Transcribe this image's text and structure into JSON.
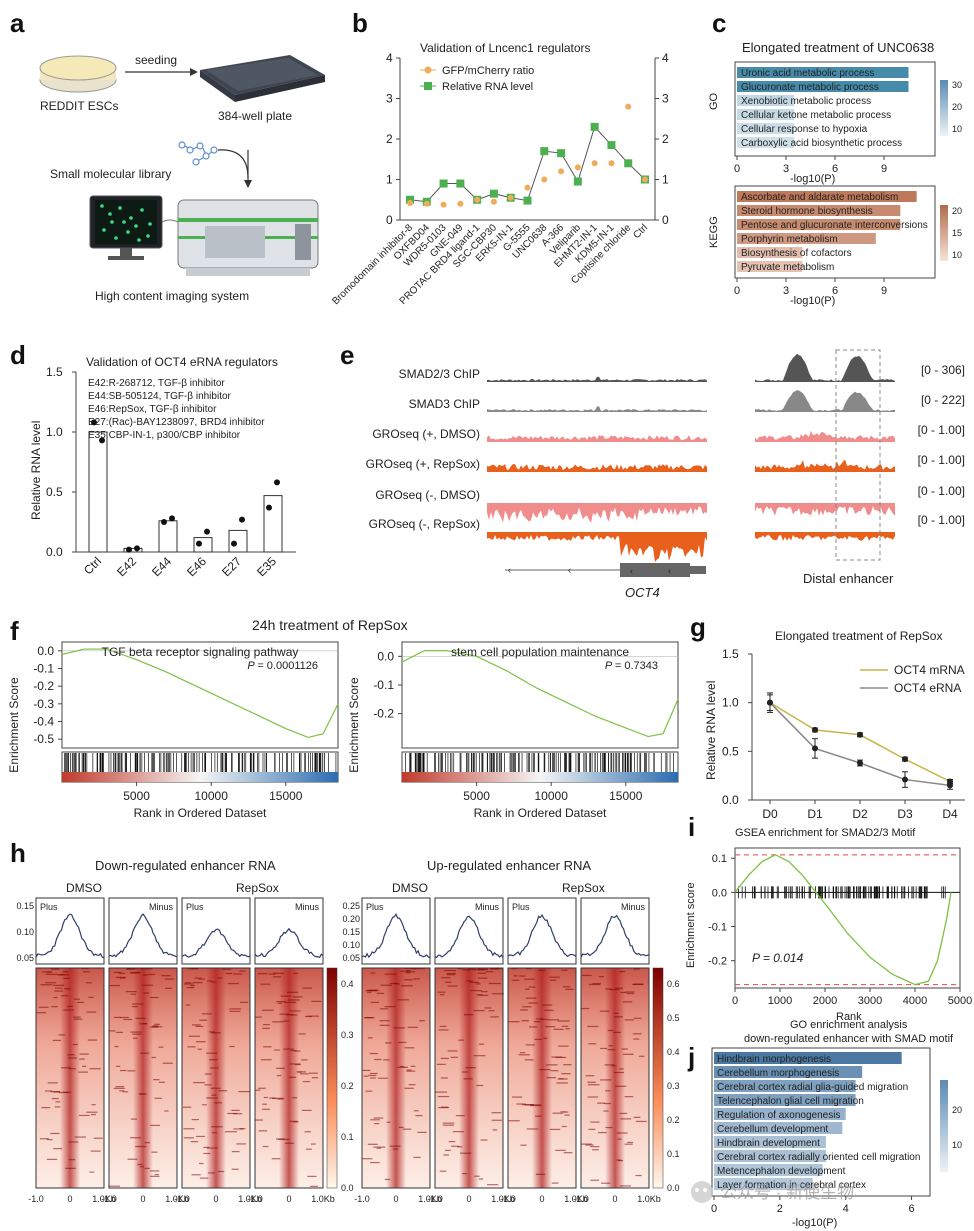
{
  "panel_letters": {
    "a": "a",
    "b": "b",
    "c": "c",
    "d": "d",
    "e": "e",
    "f": "f",
    "g": "g",
    "h": "h",
    "i": "i",
    "j": "j"
  },
  "panel_a": {
    "cells": "REDDIT ESCs",
    "seeding": "seeding",
    "plate": "384-well plate",
    "library": "Small molecular library",
    "system": "High content imaging system"
  },
  "panel_b": {
    "chart_data": {
      "type": "line",
      "title": "Validation of Lncenc1 regulators",
      "ylim": [
        0,
        4
      ],
      "yticks": [
        "0",
        "1",
        "2",
        "3",
        "4"
      ],
      "categories": [
        "Bromodomain inhibitor-8",
        "OXFBD04",
        "WDR5-0103",
        "GNE-049",
        "PROTAC BRD4 ligand-1",
        "SGC-CBP30",
        "ERK5-IN-1",
        "G-5555",
        "UNC0638",
        "A-366",
        "Veliparib",
        "EHMT2-IN-1",
        "KDM5-IN-1",
        "Coptisine chloride",
        "Ctrl"
      ],
      "category_colors": [
        "#2a9d6a",
        "#2a9d6a",
        "#222222",
        "#222222",
        "#2a9d6a",
        "#2a9d6a",
        "#2a9d6a",
        "#2a9d6a",
        "#2a9d6a",
        "#222222",
        "#222222",
        "#2a9d6a",
        "#2a9d6a",
        "#2a9d6a",
        "#222222"
      ],
      "series": [
        {
          "name": "GFP/mCherry ratio",
          "color": "#f0ac5a",
          "values": [
            0.42,
            0.4,
            0.38,
            0.4,
            0.5,
            0.45,
            0.55,
            0.8,
            1.0,
            1.2,
            1.3,
            1.4,
            1.4,
            2.8,
            1.0
          ]
        },
        {
          "name": "Relative RNA level",
          "color": "#4caf50",
          "values": [
            0.5,
            0.45,
            0.9,
            0.9,
            0.5,
            0.65,
            0.55,
            0.48,
            1.7,
            1.65,
            0.95,
            2.3,
            1.85,
            1.4,
            1.0
          ]
        }
      ]
    }
  },
  "panel_c": {
    "title": "Elongated treatment of UNC0638",
    "go": {
      "label": "GO",
      "chart_data": {
        "type": "bar",
        "categories": [
          "Uronic acid metabolic process",
          "Glucuronate metabolic process",
          "Xenobiotic metabolic process",
          "Cellular ketone metabolic process",
          "Cellular response to hypoxia",
          "Carboxylic acid biosynthetic process"
        ],
        "values": [
          10.5,
          10.5,
          3.5,
          3.5,
          3.5,
          3.5
        ],
        "color_values": [
          32,
          32,
          8,
          7,
          6,
          5
        ],
        "xticks": [
          "0",
          "3",
          "6",
          "9"
        ],
        "xlim": [
          0,
          12
        ],
        "xlabel": "-log10(P)",
        "colorbar_ticks": [
          "30",
          "20",
          "10"
        ]
      }
    },
    "kegg": {
      "label": "KEGG",
      "chart_data": {
        "type": "bar",
        "categories": [
          "Ascorbate and aldarate metabolism",
          "Steroid hormone biosynthesis",
          "Pentose and glucuronate interconversions",
          "Porphyrin metabolism",
          "Biosynthesis of cofactors",
          "Pyruvate metabolism"
        ],
        "values": [
          11.0,
          10.0,
          10.0,
          8.5,
          4.0,
          4.0
        ],
        "color_values": [
          22,
          18,
          18,
          15,
          7,
          6
        ],
        "xticks": [
          "0",
          "3",
          "6",
          "9"
        ],
        "xlim": [
          0,
          12
        ],
        "xlabel": "-log10(P)",
        "colorbar_ticks": [
          "20",
          "15",
          "10"
        ]
      }
    }
  },
  "panel_d": {
    "chart_data": {
      "type": "bar",
      "title": "Validation of OCT4 eRNA regulators",
      "ylabel": "Relative RNA level",
      "ylim": [
        0,
        1.5
      ],
      "yticks": [
        "0.0",
        "0.5",
        "1.0",
        "1.5"
      ],
      "categories": [
        "Ctrl",
        "E42",
        "E44",
        "E46",
        "E27",
        "E35"
      ],
      "values": [
        1.0,
        0.03,
        0.26,
        0.12,
        0.18,
        0.47
      ],
      "points": [
        [
          1.08,
          0.93
        ],
        [
          0.02,
          0.03
        ],
        [
          0.25,
          0.28
        ],
        [
          0.07,
          0.17
        ],
        [
          0.07,
          0.27
        ],
        [
          0.37,
          0.58
        ]
      ],
      "legend": [
        "E42:R-268712, TGF-β inhibitor",
        "E44:SB-505124, TGF-β inhibitor",
        "E46:RepSox, TGF-β inhibitor",
        "E27:(Rac)-BAY1238097, BRD4 inhibitor",
        "E35:CBP-IN-1, p300/CBP inhibitor"
      ]
    }
  },
  "panel_e": {
    "tracks": [
      {
        "name": "SMAD2/3 ChIP",
        "range": "[0 - 306]",
        "color": "#555555"
      },
      {
        "name": "SMAD3 ChIP",
        "range": "[0 - 222]",
        "color": "#888888"
      },
      {
        "name": "GROseq (+, DMSO)",
        "range": "[0 - 1.00]",
        "color": "#f08c8c"
      },
      {
        "name": "GROseq (+, RepSox)",
        "range": "[0 - 1.00]",
        "color": "#e8601c"
      },
      {
        "name": "GROseq (-, DMSO)",
        "range": "[0 - 1.00]",
        "color": "#f08c8c"
      },
      {
        "name": "GROseq (-, RepSox)",
        "range": "[0 - 1.00]",
        "color": "#e8601c"
      }
    ],
    "gene": "OCT4",
    "enhancer_label": "Distal enhancer"
  },
  "panel_f": {
    "title": "24h treatment of RepSox",
    "left": {
      "chart_data": {
        "type": "line",
        "name": "TGF beta receptor signaling pathway",
        "pvalue": "= 0.0001126",
        "ylabel": "Enrichment Score",
        "ylim": [
          -0.55,
          0.05
        ],
        "yticks": [
          "0.0",
          "-0.1",
          "-0.2",
          "-0.3",
          "-0.4",
          "-0.5"
        ],
        "xticks": [
          "5000",
          "10000",
          "15000"
        ],
        "xlabel": "Rank in Ordered Dataset",
        "x": [
          0,
          1500,
          3000,
          5000,
          7000,
          9000,
          11000,
          13000,
          15000,
          16500,
          17500,
          18500
        ],
        "y": [
          -0.02,
          0.01,
          0.01,
          -0.05,
          -0.12,
          -0.2,
          -0.28,
          -0.36,
          -0.44,
          -0.49,
          -0.47,
          -0.3
        ]
      }
    },
    "right": {
      "chart_data": {
        "type": "line",
        "name": "stem cell population maintenance",
        "pvalue": "= 0.7343",
        "ylabel": "Enrichment Score",
        "ylim": [
          -0.32,
          0.05
        ],
        "yticks": [
          "0.0",
          "-0.1",
          "-0.2"
        ],
        "xticks": [
          "5000",
          "10000",
          "15000"
        ],
        "xlabel": "Rank in Ordered Dataset",
        "x": [
          0,
          1500,
          3000,
          5000,
          7000,
          9000,
          11000,
          13000,
          15000,
          16500,
          17500,
          18500
        ],
        "y": [
          -0.02,
          0.02,
          0.02,
          0.0,
          -0.05,
          -0.11,
          -0.16,
          -0.21,
          -0.25,
          -0.28,
          -0.27,
          -0.15
        ]
      }
    }
  },
  "panel_g": {
    "chart_data": {
      "type": "line",
      "title": "Elongated treatment of RepSox",
      "ylabel": "Relative RNA level",
      "ylim": [
        0,
        1.5
      ],
      "yticks": [
        "0.0",
        "0.5",
        "1.0",
        "1.5"
      ],
      "categories": [
        "D0",
        "D1",
        "D2",
        "D3",
        "D4"
      ],
      "series": [
        {
          "name": "OCT4 mRNA",
          "color": "#c8b44a",
          "values": [
            1.0,
            0.72,
            0.67,
            0.42,
            0.19
          ],
          "err": [
            0.08,
            0.02,
            0.02,
            0.02,
            0.02
          ]
        },
        {
          "name": "OCT4 eRNA",
          "color": "#888888",
          "values": [
            1.0,
            0.53,
            0.38,
            0.21,
            0.15
          ],
          "err": [
            0.1,
            0.1,
            0.03,
            0.08,
            0.04
          ]
        }
      ]
    }
  },
  "panel_h": {
    "groups": [
      {
        "title": "Down-regulated enhancer RNA",
        "conds": [
          "DMSO",
          "RepSox"
        ],
        "yticks": [
          "0.15",
          "0.10",
          "0.05"
        ],
        "cbar": [
          "0.4",
          "0.3",
          "0.2",
          "0.1",
          "0.0"
        ]
      },
      {
        "title": "Up-regulated enhancer RNA",
        "conds": [
          "DMSO",
          "RepSox"
        ],
        "yticks": [
          "0.25",
          "0.20",
          "0.15",
          "0.10",
          "0.05"
        ],
        "cbar": [
          "0.6",
          "0.5",
          "0.4",
          "0.3",
          "0.2",
          "0.1",
          "0.0"
        ]
      }
    ],
    "strands": [
      "Plus",
      "Minus"
    ],
    "xticks": [
      "-1.0",
      "0",
      "1.0Kb"
    ]
  },
  "panel_i": {
    "chart_data": {
      "type": "line",
      "title": "GSEA enrichment for SMAD2/3 Motif",
      "ylabel": "Enrichment score",
      "xlabel": "Rank",
      "ylim": [
        -0.28,
        0.13
      ],
      "xlim": [
        0,
        5000
      ],
      "yticks": [
        "0.1",
        "0.0",
        "-0.1",
        "-0.2"
      ],
      "xticks": [
        "0",
        "1000",
        "2000",
        "3000",
        "4000",
        "5000"
      ],
      "pvalue": "P = 0.014",
      "x": [
        0,
        300,
        600,
        900,
        1200,
        1500,
        1800,
        2100,
        2500,
        3000,
        3500,
        4000,
        4300,
        4500,
        4700,
        4800
      ],
      "y": [
        0.0,
        0.05,
        0.09,
        0.11,
        0.09,
        0.05,
        0.0,
        -0.05,
        -0.12,
        -0.19,
        -0.24,
        -0.27,
        -0.26,
        -0.2,
        -0.08,
        0.0
      ]
    }
  },
  "panel_j": {
    "chart_data": {
      "type": "bar",
      "title": "GO enrichment analysis",
      "subtitle": "down-regulated enhancer with SMAD motif",
      "xlabel": "-log10(P)",
      "xlim": [
        0,
        6.5
      ],
      "xticks": [
        "0",
        "2",
        "4",
        "6"
      ],
      "categories": [
        "Hindbrain morphogenesis",
        "Cerebellum morphogenesis",
        "Cerebral cortex radial glia-guided migration",
        "Telencephalon glial cell migration",
        "Regulation of axonogenesis",
        "Cerebellum development",
        "Hindbrain development",
        "Cerebral cortex radially oriented cell migration",
        "Metencephalon development",
        "Layer formation in cerebral cortex"
      ],
      "values": [
        5.7,
        4.5,
        4.3,
        4.3,
        4.0,
        3.9,
        3.4,
        3.4,
        3.3,
        3.0
      ],
      "color_values": [
        28,
        22,
        18,
        18,
        14,
        12,
        10,
        10,
        9,
        8
      ],
      "colorbar_ticks": [
        "20",
        "10"
      ]
    }
  },
  "watermark": "公众号 · 新使生物"
}
